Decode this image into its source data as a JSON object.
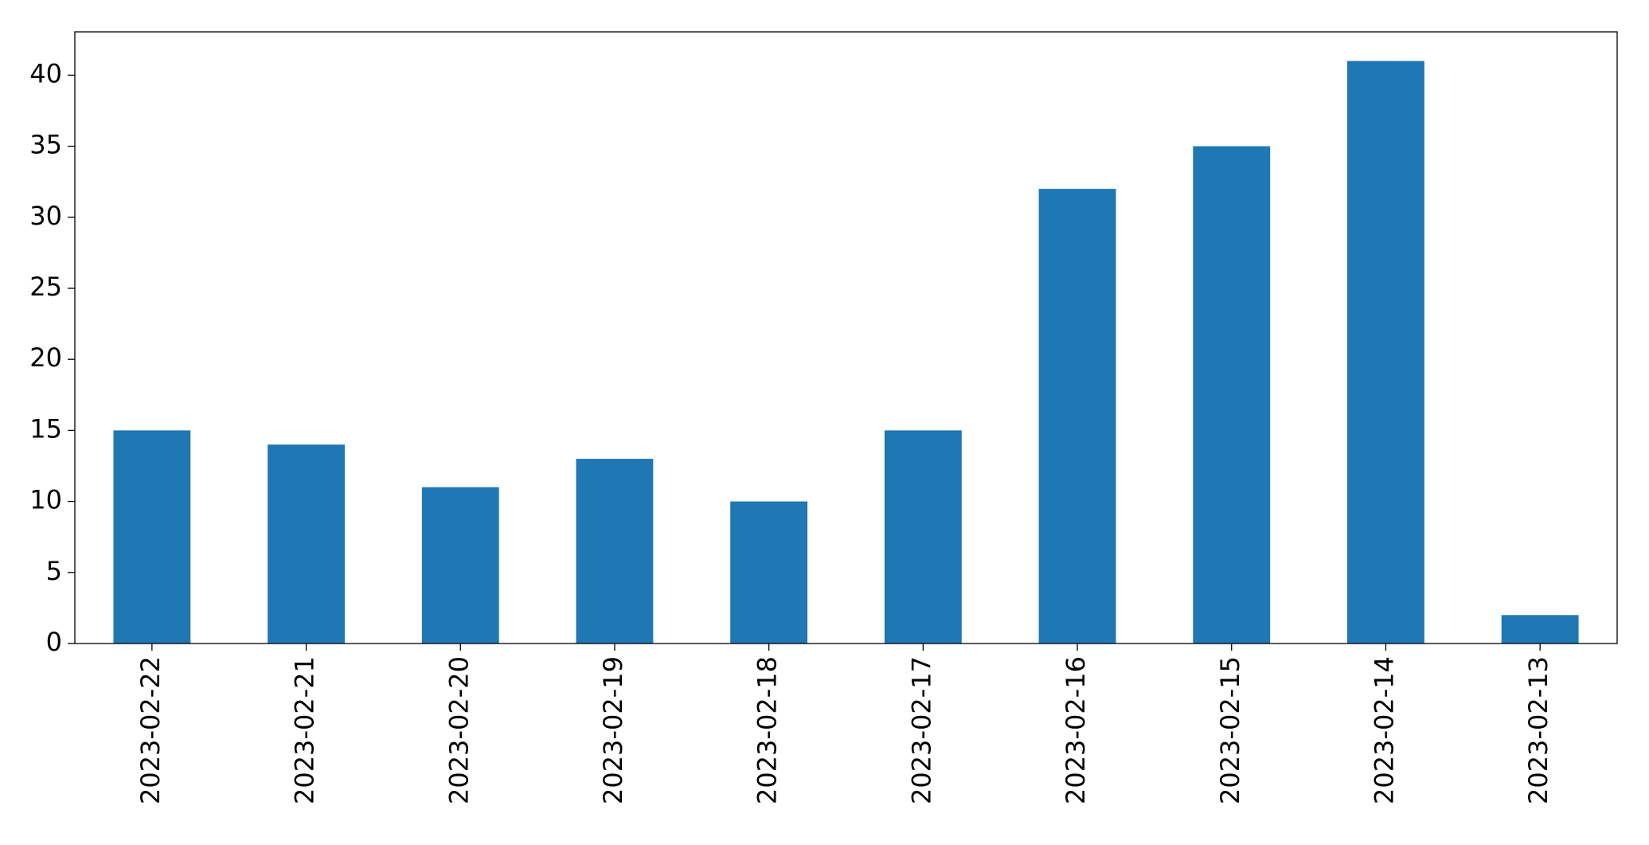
{
  "chart_data": {
    "type": "bar",
    "categories": [
      "2023-02-22",
      "2023-02-21",
      "2023-02-20",
      "2023-02-19",
      "2023-02-18",
      "2023-02-17",
      "2023-02-16",
      "2023-02-15",
      "2023-02-14",
      "2023-02-13"
    ],
    "values": [
      15,
      14,
      11,
      13,
      10,
      15,
      32,
      35,
      41,
      2
    ],
    "color": "#1f77b4",
    "ylim": [
      0,
      43.05
    ],
    "yticks": [
      0,
      5,
      10,
      15,
      20,
      25,
      30,
      35,
      40
    ],
    "grid": false
  }
}
